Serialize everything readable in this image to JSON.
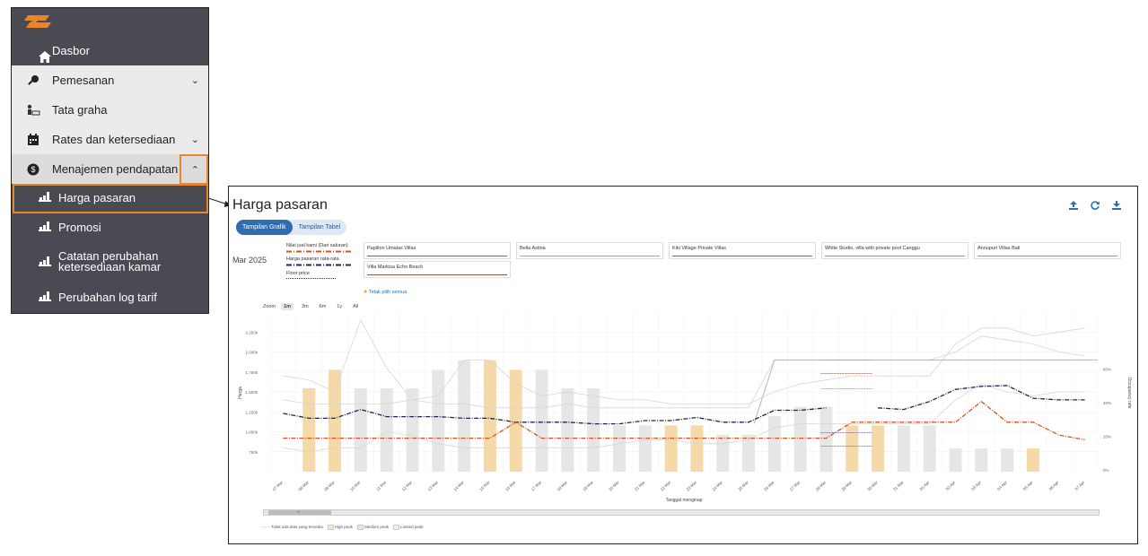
{
  "sidebar": {
    "items": [
      {
        "label": "Dasbor",
        "icon": "home-icon"
      },
      {
        "label": "Pemesanan",
        "icon": "key-icon",
        "chevron": "down"
      },
      {
        "label": "Tata graha",
        "icon": "housekeeping-icon"
      },
      {
        "label": "Rates dan ketersediaan",
        "icon": "calendar-icon",
        "chevron": "down"
      },
      {
        "label": "Menajemen pendapatan",
        "icon": "dollar-icon",
        "chevron": "up"
      }
    ],
    "subitems": [
      {
        "label": "Harga pasaran",
        "icon": "chart-bar-icon"
      },
      {
        "label": "Promosi",
        "icon": "chart-bar-icon"
      },
      {
        "label_line1": "Catatan perubahan",
        "label_line2": "ketersediaan kamar",
        "icon": "chart-bar-icon"
      },
      {
        "label": "Perubahan log tarif",
        "icon": "chart-bar-icon"
      }
    ]
  },
  "page": {
    "title": "Harga pasaran",
    "tabs": {
      "grafik": "Tampilan Grafik",
      "tabel": "Tampilan Tabel"
    },
    "month": "Mar 2025",
    "own_legend": {
      "own_price": "Nilai jual kami (Dari saluran)",
      "market_avg": "Harga pasaran rata-rata",
      "floor": "Floor price"
    },
    "competitors": [
      {
        "name": "Papillon Umalas Villas",
        "color": "#6a5fb0"
      },
      {
        "name": "Bella Astina",
        "color": "#7cbf6a"
      },
      {
        "name": "Kiki Village Private Villas",
        "color": "#5a5fb0"
      },
      {
        "name": "White Studio, villa with private pool Canggu",
        "color": "#c98a4a"
      },
      {
        "name": "Annupuri Villas Bali",
        "color": "#69b85a"
      },
      {
        "name": "Villa Markisa Echo Beach",
        "color": "#8b5a3c"
      }
    ],
    "deselect_all": "Tidak pilih semua",
    "zoom": {
      "label": "Zoom",
      "options": [
        "1m",
        "3m",
        "6m",
        "1y",
        "All"
      ],
      "active": "1m"
    },
    "bottom_legend": {
      "no_data": "Tidak ada data yang tersedia",
      "high": "High peak",
      "medium": "Medium peak",
      "limited": "Limited peak"
    },
    "scroll_center": "III"
  },
  "chart_data": {
    "type": "bar",
    "xlabel": "Tanggal menginap",
    "ylabel": "Harga",
    "y2label": "Occupancy rate",
    "ylim": [
      500000,
      2500000
    ],
    "y_ticks": [
      "750k",
      "1.000k",
      "1.250k",
      "1.500k",
      "1.750k",
      "2.000k",
      "2.250k"
    ],
    "y2_ticks": [
      "0%",
      "20%",
      "40%",
      "60%"
    ],
    "categories": [
      "07 Mar",
      "08 Mar",
      "09 Mar",
      "10 Mar",
      "11 Mar",
      "12 Mar",
      "13 Mar",
      "14 Mar",
      "15 Mar",
      "16 Mar",
      "17 Mar",
      "18 Mar",
      "19 Mar",
      "20 Mar",
      "21 Mar",
      "22 Mar",
      "23 Mar",
      "24 Mar",
      "25 Mar",
      "26 Mar",
      "27 Mar",
      "28 Mar",
      "29 Mar",
      "30 Mar",
      "31 Mar",
      "01 Apr",
      "02 Apr",
      "03 Apr",
      "04 Apr",
      "05 Apr",
      "06 Apr",
      "07 Apr"
    ],
    "bars": [
      {
        "v": 0,
        "peak": "none"
      },
      {
        "v": 1.62,
        "peak": "high"
      },
      {
        "v": 1.98,
        "peak": "high"
      },
      {
        "v": 1.62,
        "peak": "limited"
      },
      {
        "v": 1.62,
        "peak": "limited"
      },
      {
        "v": 1.62,
        "peak": "limited"
      },
      {
        "v": 1.98,
        "peak": "limited"
      },
      {
        "v": 2.16,
        "peak": "limited"
      },
      {
        "v": 2.16,
        "peak": "high"
      },
      {
        "v": 1.98,
        "peak": "high"
      },
      {
        "v": 1.98,
        "peak": "limited"
      },
      {
        "v": 1.62,
        "peak": "limited"
      },
      {
        "v": 1.62,
        "peak": "limited"
      },
      {
        "v": 0.9,
        "peak": "limited"
      },
      {
        "v": 0.9,
        "peak": "limited"
      },
      {
        "v": 0.9,
        "peak": "high"
      },
      {
        "v": 0.9,
        "peak": "high"
      },
      {
        "v": 0.72,
        "peak": "limited"
      },
      {
        "v": 0.72,
        "peak": "limited"
      },
      {
        "v": 1.08,
        "peak": "limited"
      },
      {
        "v": 1.26,
        "peak": "limited"
      },
      {
        "v": 1.26,
        "peak": "limited"
      },
      {
        "v": 0.9,
        "peak": "high"
      },
      {
        "v": 0.9,
        "peak": "high"
      },
      {
        "v": 0.9,
        "peak": "limited"
      },
      {
        "v": 0.9,
        "peak": "limited"
      },
      {
        "v": 0.45,
        "peak": "limited"
      },
      {
        "v": 0.45,
        "peak": "limited"
      },
      {
        "v": 0.45,
        "peak": "limited"
      },
      {
        "v": 0.45,
        "peak": "high"
      },
      {
        "v": 0,
        "peak": "none"
      },
      {
        "v": 0,
        "peak": "none"
      }
    ],
    "series": [
      {
        "name": "Harga pasaran rata-rata",
        "values": [
          1230000,
          1170000,
          1170000,
          1280000,
          1190000,
          1190000,
          1190000,
          1170000,
          1170000,
          1120000,
          1120000,
          1120000,
          1100000,
          1100000,
          1140000,
          1140000,
          1180000,
          1120000,
          1120000,
          1270000,
          1270000,
          1300000,
          null,
          1300000,
          1280000,
          1380000,
          1530000,
          1570000,
          1580000,
          1420000,
          1400000,
          1400000
        ]
      },
      {
        "name": "Nilai jual kami (Dari saluran)",
        "values": [
          920000,
          920000,
          920000,
          920000,
          920000,
          920000,
          920000,
          920000,
          920000,
          1120000,
          920000,
          920000,
          920000,
          920000,
          920000,
          920000,
          920000,
          920000,
          920000,
          920000,
          920000,
          920000,
          1120000,
          1120000,
          1120000,
          1120000,
          1120000,
          1380000,
          1120000,
          1120000,
          960000,
          900000
        ]
      }
    ]
  },
  "colors": {
    "sidebar_dark": "#4a4a53",
    "sidebar_light": "#ebebeb",
    "highlight": "#e8852c",
    "accent": "#2f6db3",
    "high_peak": "#f5d9a8",
    "limited_peak": "#e6e6e6",
    "market_line": "#1f2650",
    "own_line": "#d9531e"
  }
}
